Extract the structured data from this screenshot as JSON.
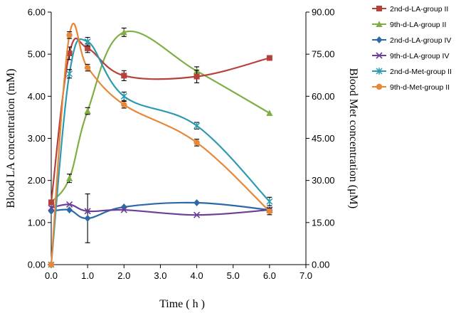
{
  "chart_data": {
    "type": "line",
    "title": "",
    "xlabel": "Time ( h )",
    "ylabel_left": "Blood LA concentration (mM)",
    "ylabel_right": "Blood Met concentration  (μM)",
    "xlim": [
      0,
      7
    ],
    "ylim_left": [
      0,
      6
    ],
    "ylim_right": [
      0,
      90
    ],
    "x_ticks": [
      "0.0",
      "1.0",
      "2.0",
      "3.0",
      "4.0",
      "5.0",
      "6.0",
      "7.0"
    ],
    "y_ticks_left": [
      "0.00",
      "1.00",
      "2.00",
      "3.00",
      "4.00",
      "5.00",
      "6.00"
    ],
    "y_ticks_right": [
      "0.00",
      "15.00",
      "30.00",
      "45.00",
      "60.00",
      "75.00",
      "90.00"
    ],
    "grid": false,
    "legend_position": "right",
    "series": [
      {
        "name": "2nd-d-LA-group II",
        "axis": "left",
        "color": "#b5413b",
        "marker": "square",
        "x": [
          0,
          0.5,
          1,
          2,
          4,
          6
        ],
        "values": [
          1.48,
          5.02,
          5.14,
          4.49,
          4.47,
          4.91
        ],
        "errors": [
          0,
          0.15,
          0.1,
          0.12,
          0.15,
          0
        ]
      },
      {
        "name": "9th-d-LA-group II",
        "axis": "left",
        "color": "#7fae43",
        "marker": "triangle",
        "x": [
          0,
          0.5,
          1,
          2,
          4,
          6
        ],
        "values": [
          1.48,
          2.05,
          3.65,
          5.52,
          4.6,
          3.6
        ],
        "errors": [
          0,
          0.1,
          0.08,
          0.1,
          0.1,
          0
        ]
      },
      {
        "name": "2nd-d-LA-group IV",
        "axis": "left",
        "color": "#2c6aa6",
        "marker": "diamond",
        "x": [
          0,
          0.5,
          1,
          2,
          4,
          6
        ],
        "values": [
          1.27,
          1.3,
          1.1,
          1.37,
          1.47,
          1.3
        ],
        "errors": [
          0,
          0,
          0.58,
          0,
          0,
          0
        ]
      },
      {
        "name": "9th-d-LA-group IV",
        "axis": "left",
        "color": "#6b3e97",
        "marker": "x",
        "x": [
          0,
          0.5,
          1,
          2,
          4,
          6
        ],
        "values": [
          1.35,
          1.43,
          1.27,
          1.3,
          1.18,
          1.3
        ],
        "errors": [
          0,
          0,
          0,
          0,
          0,
          0
        ]
      },
      {
        "name": "2nd-d-Met-group II",
        "axis": "right",
        "color": "#2e9ab0",
        "marker": "asterisk",
        "x": [
          0,
          0.5,
          1,
          2,
          4,
          6
        ],
        "values": [
          0,
          68,
          79.5,
          60,
          49.5,
          22.5
        ],
        "errors": [
          0,
          1.5,
          1.5,
          1.5,
          1.2,
          1.5
        ]
      },
      {
        "name": "9th-d-Met-group II",
        "axis": "right",
        "color": "#e6883a",
        "marker": "circle",
        "x": [
          0,
          0.5,
          1,
          2,
          4,
          6
        ],
        "values": [
          0,
          81.8,
          70.2,
          57,
          43.5,
          19
        ],
        "errors": [
          0,
          1.2,
          1.2,
          1.2,
          1.2,
          1.2
        ]
      }
    ]
  }
}
